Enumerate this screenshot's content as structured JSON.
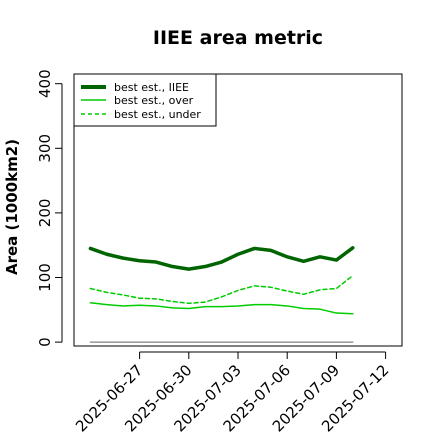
{
  "chart_data": {
    "type": "line",
    "title": "IIEE area metric",
    "ylabel": "Area (1000km2)",
    "xlabel": "",
    "ylim": [
      -6,
      415
    ],
    "xlim": [
      "2025-06-23",
      "2025-07-13"
    ],
    "yticks": [
      0,
      100,
      200,
      300,
      400
    ],
    "xticks": [
      "2025-06-27",
      "2025-06-30",
      "2025-07-03",
      "2025-07-06",
      "2025-07-09",
      "2025-07-12"
    ],
    "grid": false,
    "legend": {
      "position": "top-left"
    },
    "x": [
      "2025-06-24",
      "2025-06-25",
      "2025-06-26",
      "2025-06-27",
      "2025-06-28",
      "2025-06-29",
      "2025-06-30",
      "2025-07-01",
      "2025-07-02",
      "2025-07-03",
      "2025-07-04",
      "2025-07-05",
      "2025-07-06",
      "2025-07-07",
      "2025-07-08",
      "2025-07-09",
      "2025-07-10",
      "2025-07-11",
      "2025-07-12"
    ],
    "series": [
      {
        "name": "best est., IIEE",
        "color": "#006400",
        "style": "solid-thick",
        "values": [
          145,
          136,
          130,
          126,
          124,
          117,
          113,
          117,
          124,
          136,
          145,
          142,
          132,
          125,
          132,
          127,
          146,
          null,
          null
        ]
      },
      {
        "name": "best est., over",
        "color": "#00cc00",
        "style": "solid",
        "values": [
          61,
          58,
          56,
          57,
          56,
          53,
          52,
          55,
          55,
          56,
          58,
          58,
          56,
          52,
          51,
          45,
          44,
          null,
          null
        ]
      },
      {
        "name": "best est., under",
        "color": "#00cc00",
        "style": "dashed",
        "values": [
          83,
          77,
          73,
          68,
          67,
          63,
          60,
          62,
          70,
          80,
          87,
          85,
          79,
          74,
          81,
          83,
          103,
          null,
          null
        ]
      },
      {
        "name": "",
        "color": "#808080",
        "style": "solid-thin",
        "values": [
          0,
          0,
          0,
          0,
          0,
          0,
          0,
          0,
          0,
          0,
          0,
          0,
          0,
          0,
          0,
          0,
          0,
          null,
          null
        ]
      }
    ]
  }
}
